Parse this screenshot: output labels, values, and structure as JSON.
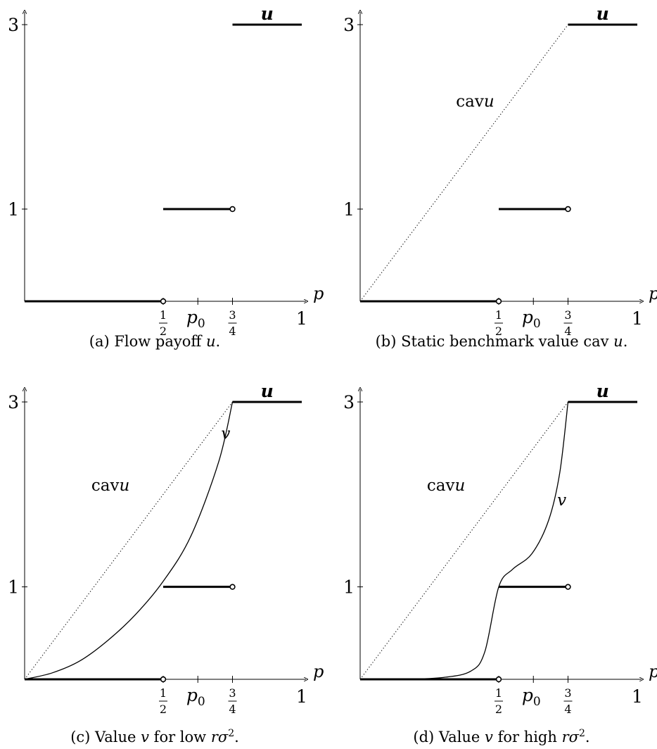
{
  "panels": [
    {
      "id": "a",
      "caption": "(a) Flow payoff u.",
      "caption_parts": {
        "prefix": "(a) Flow payoff ",
        "var": "u",
        "suffix": "."
      },
      "labels": {
        "u": "u"
      },
      "show_cav": false,
      "v_curve": null
    },
    {
      "id": "b",
      "caption": "(b) Static benchmark value cav u.",
      "caption_parts": {
        "prefix": "(b) Static benchmark value cav ",
        "var": "u",
        "suffix": "."
      },
      "labels": {
        "u": "u",
        "cav": "cav",
        "cav_var": "u"
      },
      "show_cav": true,
      "v_curve": null
    },
    {
      "id": "c",
      "caption": "(c) Value v for low rσ².",
      "caption_parts": {
        "prefix": "(c) Value ",
        "var": "v",
        "mid": " for low ",
        "rsig": "rσ",
        "exp": "2",
        "suffix": "."
      },
      "labels": {
        "u": "u",
        "cav": "cav",
        "cav_var": "u",
        "v": "v"
      },
      "show_cav": true,
      "v_curve": "low"
    },
    {
      "id": "d",
      "caption": "(d) Value v for high rσ².",
      "caption_parts": {
        "prefix": "(d) Value ",
        "var": "v",
        "mid": " for high ",
        "rsig": "rσ",
        "exp": "2",
        "suffix": "."
      },
      "labels": {
        "u": "u",
        "cav": "cav",
        "cav_var": "u",
        "v": "v"
      },
      "show_cav": true,
      "v_curve": "high"
    }
  ],
  "axes": {
    "x_var": "p",
    "y_ticks": [
      "3",
      "1"
    ],
    "x_ticks": [
      {
        "value": 0.5,
        "num": "1",
        "den": "2"
      },
      {
        "value": 0.625,
        "text": "p",
        "sub": "0"
      },
      {
        "value": 0.75,
        "num": "3",
        "den": "4"
      },
      {
        "value": 1,
        "text": "1"
      }
    ],
    "xlim": [
      0,
      1
    ],
    "ylim": [
      0,
      3
    ]
  },
  "chart_data": [
    {
      "panel": "a",
      "type": "line",
      "series": [
        {
          "name": "u",
          "segments": [
            {
              "x": [
                0,
                0.5
              ],
              "y": [
                0,
                0
              ],
              "open_end": true
            },
            {
              "x": [
                0.5,
                0.75
              ],
              "y": [
                1,
                1
              ],
              "open_end": true
            },
            {
              "x": [
                0.75,
                1
              ],
              "y": [
                3,
                3
              ]
            }
          ]
        }
      ]
    },
    {
      "panel": "b",
      "type": "line",
      "series": [
        {
          "name": "u",
          "segments": [
            {
              "x": [
                0,
                0.5
              ],
              "y": [
                0,
                0
              ],
              "open_end": true
            },
            {
              "x": [
                0.5,
                0.75
              ],
              "y": [
                1,
                1
              ],
              "open_end": true
            },
            {
              "x": [
                0.75,
                1
              ],
              "y": [
                3,
                3
              ]
            }
          ]
        },
        {
          "name": "cav u",
          "x": [
            0,
            0.75,
            1
          ],
          "y": [
            0,
            3,
            3
          ],
          "style": "dotted"
        }
      ]
    },
    {
      "panel": "c",
      "type": "line",
      "series": [
        {
          "name": "u",
          "segments": [
            {
              "x": [
                0,
                0.5
              ],
              "y": [
                0,
                0
              ],
              "open_end": true
            },
            {
              "x": [
                0.5,
                0.75
              ],
              "y": [
                1,
                1
              ],
              "open_end": true
            },
            {
              "x": [
                0.75,
                1
              ],
              "y": [
                3,
                3
              ]
            }
          ]
        },
        {
          "name": "cav u",
          "x": [
            0,
            0.75,
            1
          ],
          "y": [
            0,
            3,
            3
          ],
          "style": "dotted"
        },
        {
          "name": "v",
          "x": [
            0,
            0.1,
            0.2,
            0.3,
            0.4,
            0.5,
            0.6,
            0.7,
            0.75
          ],
          "y": [
            0,
            0.07,
            0.2,
            0.42,
            0.7,
            1.06,
            1.55,
            2.35,
            3
          ]
        }
      ]
    },
    {
      "panel": "d",
      "type": "line",
      "series": [
        {
          "name": "u",
          "segments": [
            {
              "x": [
                0,
                0.5
              ],
              "y": [
                0,
                0
              ],
              "open_end": true
            },
            {
              "x": [
                0.5,
                0.75
              ],
              "y": [
                1,
                1
              ],
              "open_end": true
            },
            {
              "x": [
                0.75,
                1
              ],
              "y": [
                3,
                3
              ]
            }
          ]
        },
        {
          "name": "cav u",
          "x": [
            0,
            0.75,
            1
          ],
          "y": [
            0,
            3,
            3
          ],
          "style": "dotted"
        },
        {
          "name": "v",
          "x": [
            0,
            0.15,
            0.3,
            0.4,
            0.45,
            0.5,
            0.55,
            0.62,
            0.68,
            0.72,
            0.75
          ],
          "y": [
            0,
            0,
            0.02,
            0.09,
            0.3,
            1,
            1.19,
            1.36,
            1.72,
            2.23,
            3
          ]
        }
      ]
    }
  ]
}
